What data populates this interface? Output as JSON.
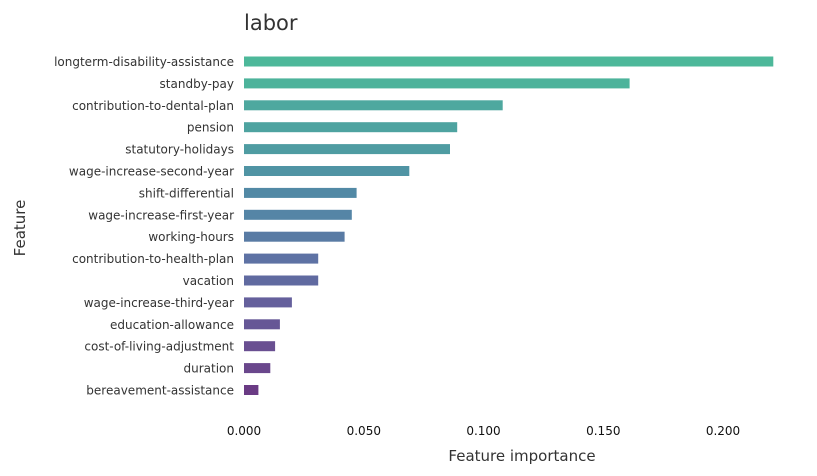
{
  "chart_data": {
    "type": "bar",
    "orientation": "horizontal",
    "title": "labor",
    "xlabel": "Feature importance",
    "ylabel": "Feature",
    "xlim": [
      0,
      0.22
    ],
    "xticks": [
      0.0,
      0.05,
      0.1,
      0.15,
      0.2
    ],
    "xtick_labels": [
      "0.000",
      "0.050",
      "0.100",
      "0.150",
      "0.200"
    ],
    "grid": false,
    "categories": [
      "longterm-disability-assistance",
      "standby-pay",
      "contribution-to-dental-plan",
      "pension",
      "statutory-holidays",
      "wage-increase-second-year",
      "shift-differential",
      "wage-increase-first-year",
      "working-hours",
      "contribution-to-health-plan",
      "vacation",
      "wage-increase-third-year",
      "education-allowance",
      "cost-of-living-adjustment",
      "duration",
      "bereavement-assistance"
    ],
    "values": [
      0.221,
      0.161,
      0.108,
      0.089,
      0.086,
      0.069,
      0.047,
      0.045,
      0.042,
      0.031,
      0.031,
      0.02,
      0.015,
      0.013,
      0.011,
      0.006
    ],
    "colors": [
      "#4db89a",
      "#4db39b",
      "#4ea89f",
      "#4ea3a0",
      "#4f9ca2",
      "#5094a4",
      "#5289a5",
      "#5585a6",
      "#597ba4",
      "#5e72a4",
      "#606aa0",
      "#65609c",
      "#665796",
      "#694f91",
      "#6a478c",
      "#6a3b84"
    ]
  }
}
